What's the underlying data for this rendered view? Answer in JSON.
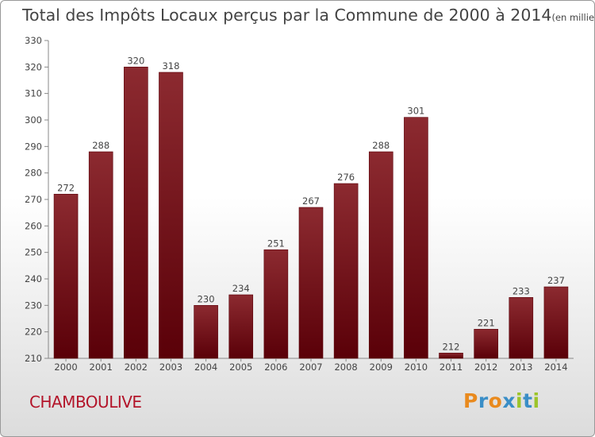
{
  "header": {
    "title": "Total des Impôts Locaux perçus par la Commune de 2000 à 2014",
    "unit": "(en milliers d'€)"
  },
  "footer": {
    "commune": "CHAMBOULIVE",
    "brand": "Proxiti",
    "brand_colors": [
      "#e98a1e",
      "#3a8ec7",
      "#e98a1e",
      "#3a8ec7",
      "#9cc42a",
      "#3a8ec7",
      "#9cc42a"
    ]
  },
  "colors": {
    "bar_top": "#8c2a30",
    "bar_bottom": "#5a0008",
    "grid": "#888888",
    "text": "#444444",
    "commune": "#b3152a"
  },
  "chart_data": {
    "type": "bar",
    "title": "Total des Impôts Locaux perçus par la Commune de 2000 à 2014",
    "xlabel": "",
    "ylabel": "en milliers d'€",
    "categories": [
      "2000",
      "2001",
      "2002",
      "2003",
      "2004",
      "2005",
      "2006",
      "2007",
      "2008",
      "2009",
      "2010",
      "2011",
      "2012",
      "2013",
      "2014"
    ],
    "values": [
      272,
      288,
      320,
      318,
      230,
      234,
      251,
      267,
      276,
      288,
      301,
      212,
      221,
      233,
      237
    ],
    "ylim": [
      210,
      330
    ],
    "yticks": [
      210,
      220,
      230,
      240,
      250,
      260,
      270,
      280,
      290,
      300,
      310,
      320,
      330
    ],
    "grid": false,
    "legend": "none"
  }
}
